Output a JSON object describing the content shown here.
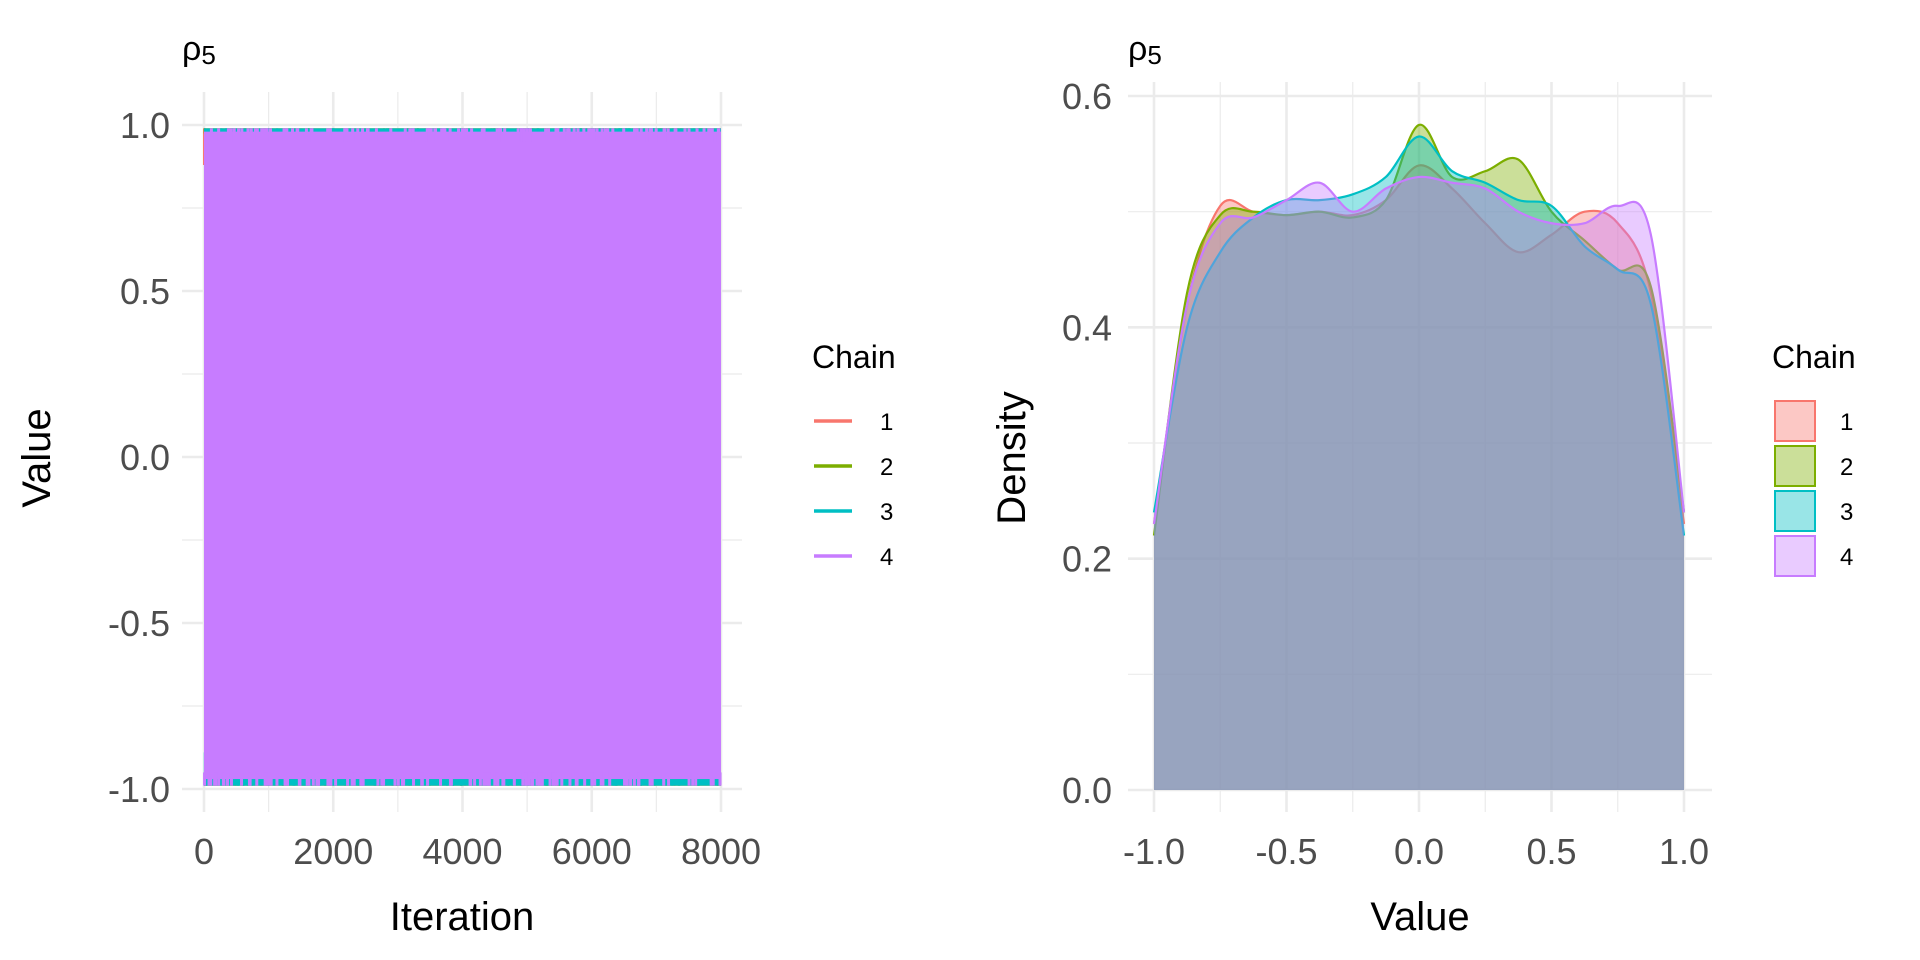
{
  "colors": {
    "chain1": "#F8766D",
    "chain2": "#7CAE00",
    "chain3": "#00BFC4",
    "chain4": "#C77CFF",
    "grid": "#EBEBEB"
  },
  "chart_data": [
    {
      "type": "line",
      "title": "ρ5",
      "title_symbol": "ρ",
      "title_sub": "5",
      "xlabel": "Iteration",
      "ylabel": "Value",
      "xlim": [
        0,
        8000
      ],
      "ylim": [
        -1.0,
        1.0
      ],
      "xticks": [
        "0",
        "2000",
        "4000",
        "6000",
        "8000"
      ],
      "xtick_values": [
        0,
        2000,
        4000,
        6000,
        8000
      ],
      "yticks": [
        "-1.0",
        "-0.5",
        "0.0",
        "0.5",
        "1.0"
      ],
      "ytick_values": [
        -1.0,
        -0.5,
        0.0,
        0.5,
        1.0
      ],
      "grid": true,
      "legend": {
        "title": "Chain",
        "placement": "right",
        "entries": [
          "1",
          "2",
          "3",
          "4"
        ]
      },
      "series": [
        {
          "name": "1",
          "iterations": [
            0,
            8000
          ],
          "value_range": [
            -0.99,
            0.99
          ]
        },
        {
          "name": "2",
          "iterations": [
            0,
            8000
          ],
          "value_range": [
            -0.99,
            0.99
          ]
        },
        {
          "name": "3",
          "iterations": [
            0,
            8000
          ],
          "value_range": [
            -0.99,
            0.99
          ]
        },
        {
          "name": "4",
          "iterations": [
            0,
            8000
          ],
          "value_range": [
            -0.97,
            0.98
          ]
        }
      ]
    },
    {
      "type": "area",
      "title": "ρ5",
      "title_symbol": "ρ",
      "title_sub": "5",
      "xlabel": "Value",
      "ylabel": "Density",
      "xlim": [
        -1.0,
        1.0
      ],
      "ylim": [
        0,
        0.6
      ],
      "xticks": [
        "-1.0",
        "-0.5",
        "0.0",
        "0.5",
        "1.0"
      ],
      "xtick_values": [
        -1.0,
        -0.5,
        0.0,
        0.5,
        1.0
      ],
      "yticks": [
        "0.0",
        "0.2",
        "0.4",
        "0.6"
      ],
      "ytick_values": [
        0.0,
        0.2,
        0.4,
        0.6
      ],
      "grid": true,
      "legend": {
        "title": "Chain",
        "placement": "right",
        "entries": [
          "1",
          "2",
          "3",
          "4"
        ]
      },
      "x": [
        -1,
        -0.875,
        -0.75,
        -0.625,
        -0.5,
        -0.375,
        -0.25,
        -0.125,
        0,
        0.125,
        0.25,
        0.375,
        0.5,
        0.625,
        0.75,
        0.875,
        1
      ],
      "series": [
        {
          "name": "1",
          "values": [
            0.23,
            0.42,
            0.505,
            0.5,
            0.497,
            0.5,
            0.497,
            0.51,
            0.54,
            0.52,
            0.49,
            0.465,
            0.48,
            0.5,
            0.49,
            0.43,
            0.23
          ]
        },
        {
          "name": "2",
          "values": [
            0.22,
            0.43,
            0.497,
            0.5,
            0.497,
            0.5,
            0.495,
            0.51,
            0.575,
            0.53,
            0.535,
            0.545,
            0.5,
            0.475,
            0.45,
            0.435,
            0.24
          ]
        },
        {
          "name": "3",
          "values": [
            0.24,
            0.4,
            0.465,
            0.495,
            0.51,
            0.51,
            0.515,
            0.53,
            0.565,
            0.535,
            0.525,
            0.51,
            0.505,
            0.47,
            0.45,
            0.42,
            0.22
          ]
        },
        {
          "name": "4",
          "values": [
            0.23,
            0.42,
            0.49,
            0.495,
            0.51,
            0.525,
            0.5,
            0.52,
            0.53,
            0.525,
            0.52,
            0.5,
            0.49,
            0.49,
            0.505,
            0.48,
            0.24
          ]
        }
      ]
    }
  ]
}
